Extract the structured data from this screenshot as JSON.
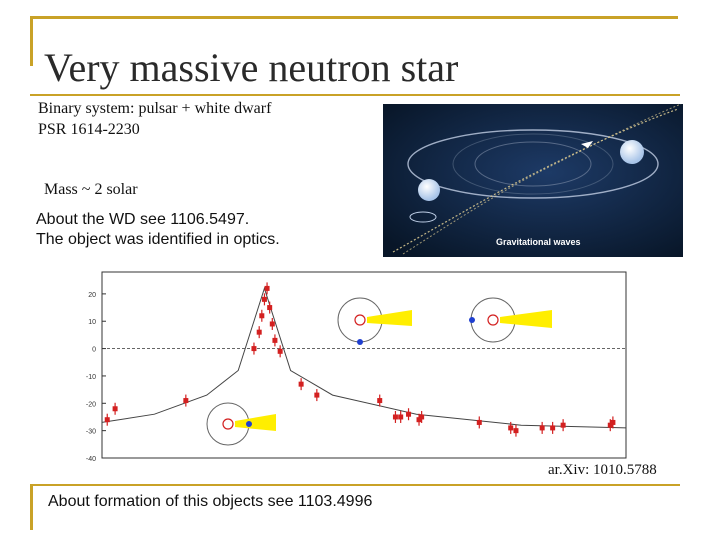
{
  "slide": {
    "title": "Very massive neutron star",
    "binary_line": "Binary system: pulsar + white dwarf",
    "psr_line": "PSR 1614-2230",
    "mass_line": "Mass ~ 2 solar",
    "wd_line1": "About the WD see 1106.5497.",
    "wd_line2": "The object was identified in optics.",
    "image_caption": "Gravitational waves",
    "reference": "ar.Xiv: 1010.5788",
    "footer": "About formation of this objects see 1103.4996"
  },
  "colors": {
    "accent": "#c9a227",
    "points": "#d32020",
    "wd_dot": "#1f3fd0",
    "cone": "#ffee00"
  },
  "chart_data": {
    "type": "scatter",
    "title": "",
    "xlabel": "",
    "ylabel": "",
    "yticks": [
      "20",
      "10",
      "0",
      "-10",
      "-20",
      "-30",
      "-40"
    ],
    "ylim": [
      -40,
      28
    ],
    "xlim": [
      0,
      1
    ],
    "grid": false,
    "zero_line": true,
    "series": [
      {
        "points": [
          {
            "x": 0.01,
            "y": -26
          },
          {
            "x": 0.025,
            "y": -22
          },
          {
            "x": 0.16,
            "y": -19
          },
          {
            "x": 0.29,
            "y": 0
          },
          {
            "x": 0.3,
            "y": 6
          },
          {
            "x": 0.305,
            "y": 12
          },
          {
            "x": 0.31,
            "y": 18
          },
          {
            "x": 0.315,
            "y": 22
          },
          {
            "x": 0.32,
            "y": 15
          },
          {
            "x": 0.325,
            "y": 9
          },
          {
            "x": 0.33,
            "y": 3
          },
          {
            "x": 0.34,
            "y": -1
          },
          {
            "x": 0.38,
            "y": -13
          },
          {
            "x": 0.41,
            "y": -17
          },
          {
            "x": 0.53,
            "y": -19
          },
          {
            "x": 0.56,
            "y": -25
          },
          {
            "x": 0.57,
            "y": -25
          },
          {
            "x": 0.585,
            "y": -24
          },
          {
            "x": 0.605,
            "y": -26
          },
          {
            "x": 0.61,
            "y": -25
          },
          {
            "x": 0.72,
            "y": -27
          },
          {
            "x": 0.78,
            "y": -29
          },
          {
            "x": 0.79,
            "y": -30
          },
          {
            "x": 0.84,
            "y": -29
          },
          {
            "x": 0.86,
            "y": -29
          },
          {
            "x": 0.88,
            "y": -28
          },
          {
            "x": 0.97,
            "y": -28
          },
          {
            "x": 0.975,
            "y": -27
          }
        ]
      }
    ],
    "model_curve": [
      {
        "x": 0.0,
        "y": -27
      },
      {
        "x": 0.1,
        "y": -24
      },
      {
        "x": 0.2,
        "y": -17
      },
      {
        "x": 0.26,
        "y": -8
      },
      {
        "x": 0.31,
        "y": 22
      },
      {
        "x": 0.36,
        "y": -8
      },
      {
        "x": 0.44,
        "y": -17
      },
      {
        "x": 0.6,
        "y": -24
      },
      {
        "x": 0.8,
        "y": -28
      },
      {
        "x": 1.0,
        "y": -29
      }
    ]
  }
}
